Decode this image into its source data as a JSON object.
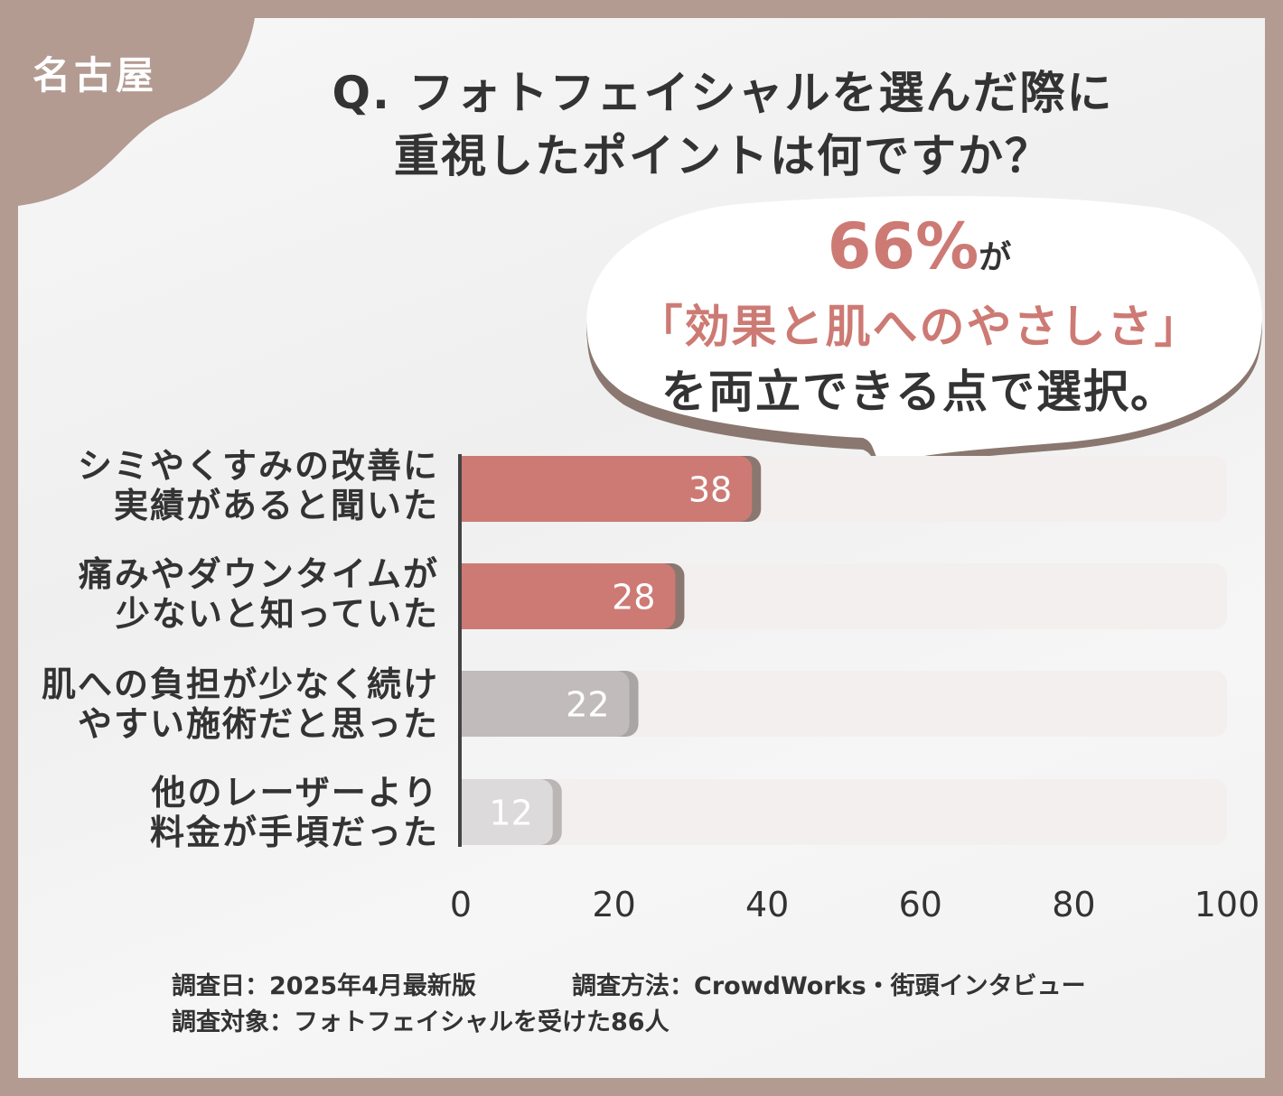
{
  "badge": "名古屋",
  "title_lines": [
    "Q. フォトフェイシャルを選んだ際に",
    "重視したポイントは何ですか？"
  ],
  "callout": {
    "percent": "66%",
    "particle": "が",
    "highlight": "「効果と肌へのやさしさ」",
    "conclusion": "を両立できる点で選択。"
  },
  "chart_data": {
    "type": "bar",
    "orientation": "horizontal",
    "categories": [
      [
        "シミやくすみの改善に",
        "実績があると聞いた"
      ],
      [
        "痛みやダウンタイムが",
        "少ないと知っていた"
      ],
      [
        "肌への負担が少なく続け",
        "やすい施術だと思った"
      ],
      [
        "他のレーザーより",
        "料金が手頃だった"
      ]
    ],
    "values": [
      38,
      28,
      22,
      12
    ],
    "data_labels": [
      "38",
      "28",
      "22",
      "12"
    ],
    "bar_colors": [
      "#cd7a74",
      "#cd7a74",
      "#c1bcbb",
      "#dcdada"
    ],
    "xlim": [
      0,
      100
    ],
    "xticks": [
      "0",
      "20",
      "40",
      "60",
      "80",
      "100"
    ],
    "grid": false,
    "legend": "none"
  },
  "footer": {
    "date": "調査日：2025年4月最新版",
    "method": "調査方法：CrowdWorks・街頭インタビュー",
    "target": "調査対象：フォトフェイシャルを受けた86人"
  },
  "colors": {
    "frame": "#b39b92",
    "accent": "#cd7a74",
    "shadow": "#8a7770"
  }
}
